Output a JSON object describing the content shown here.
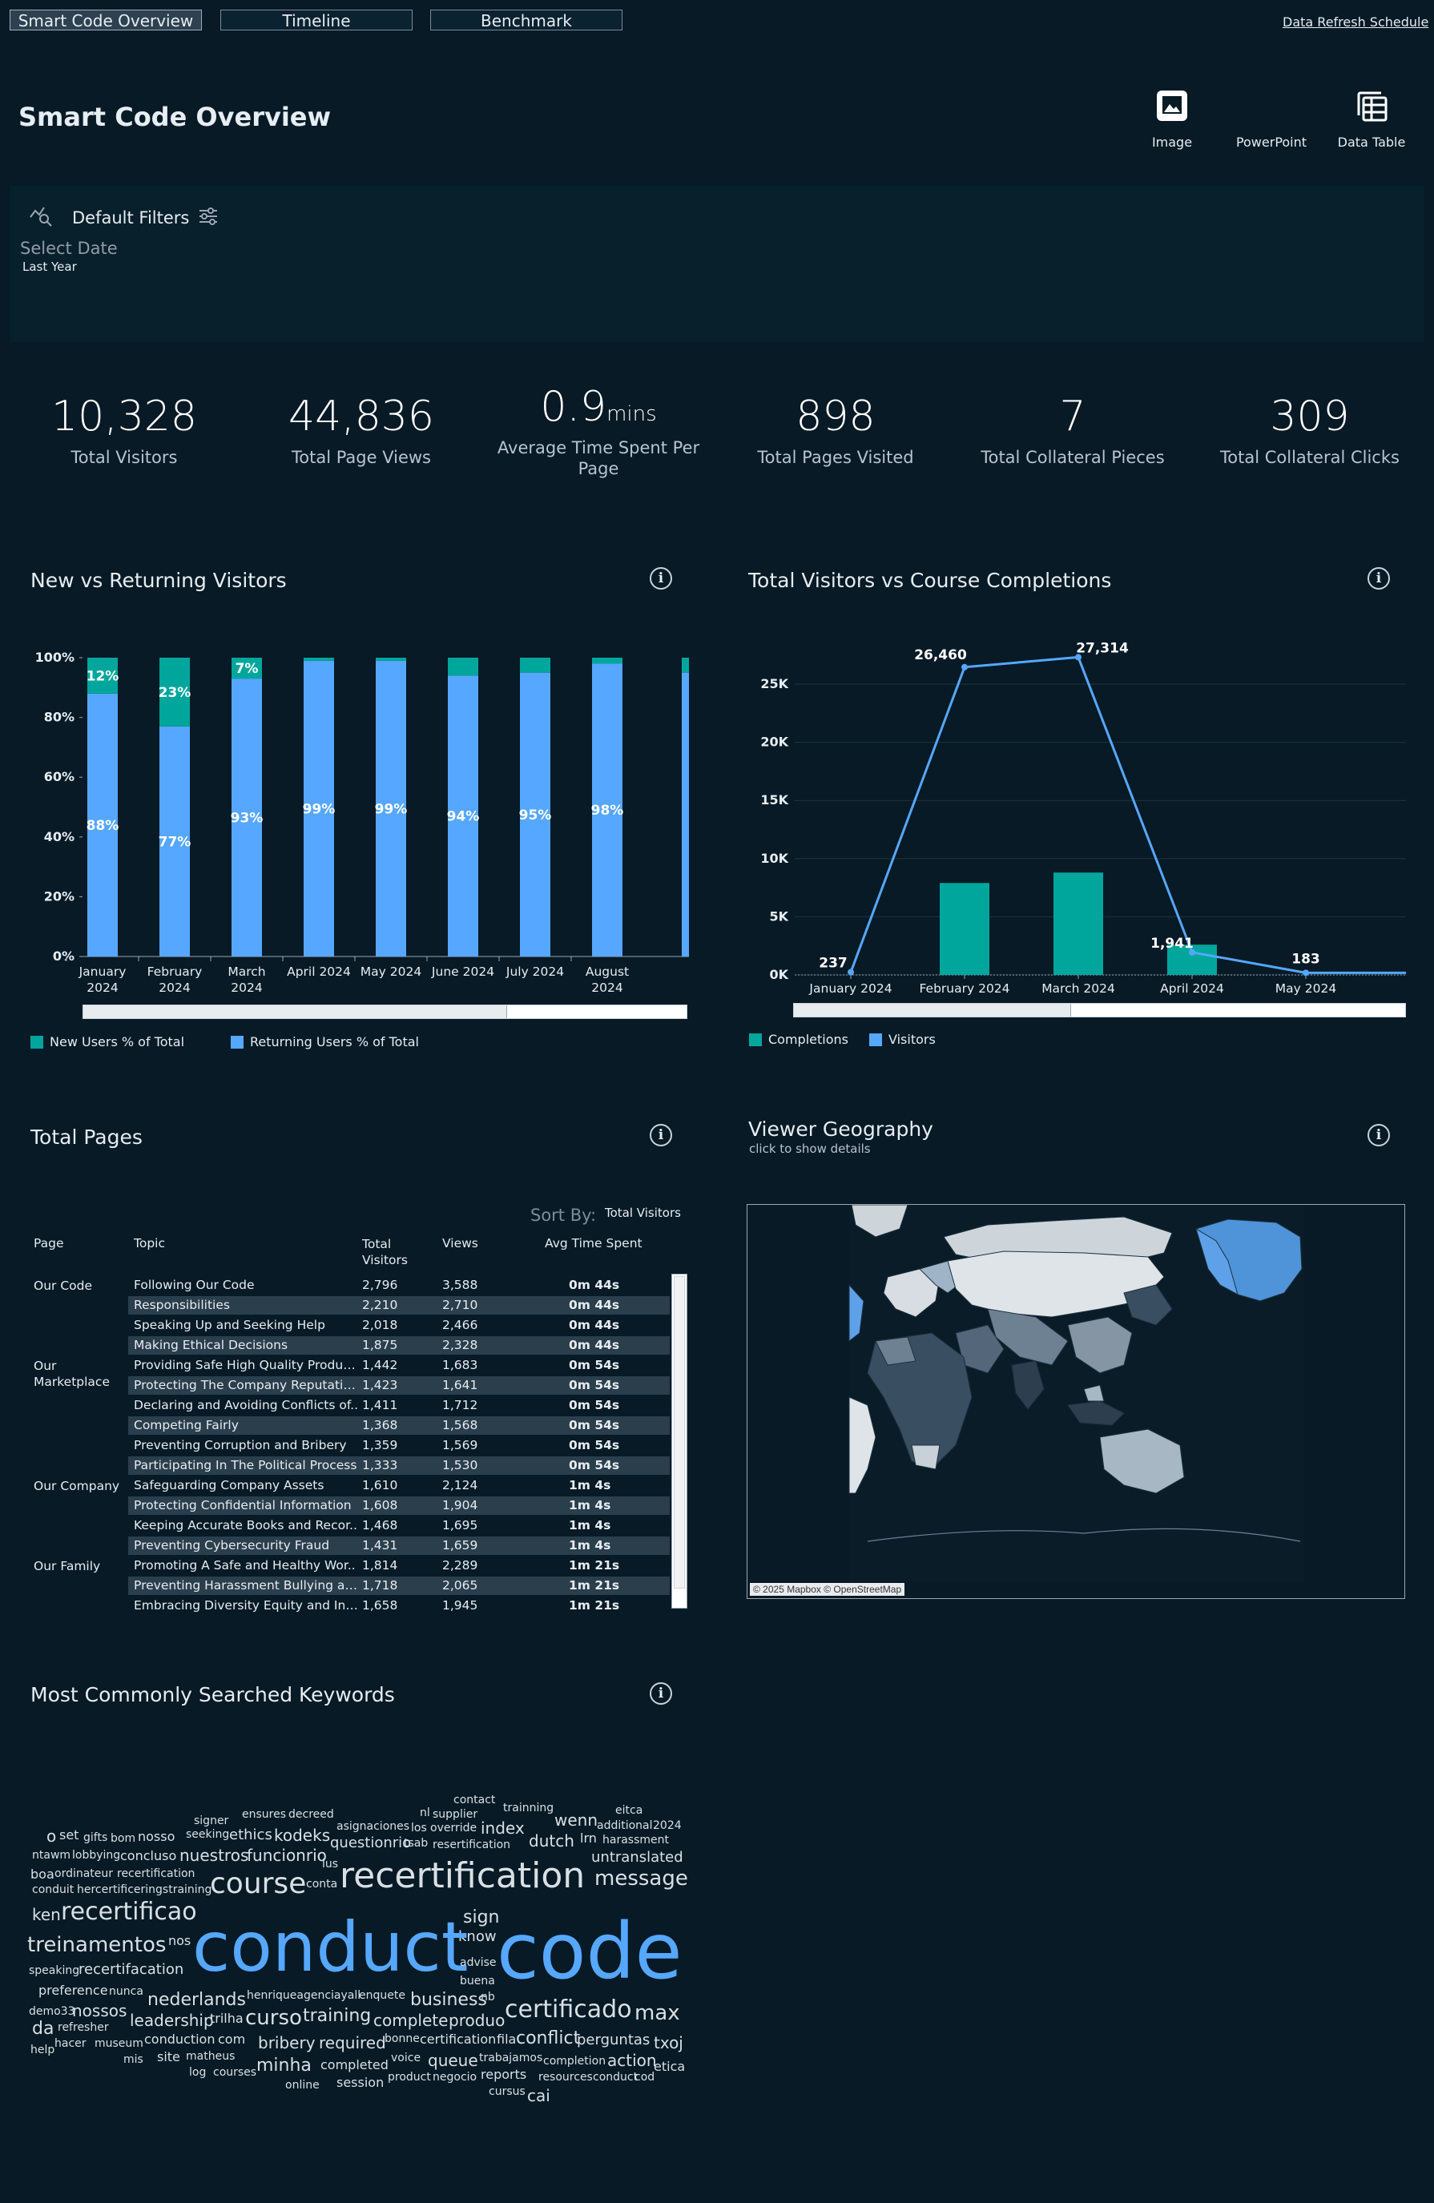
{
  "tabs": [
    "Smart Code Overview",
    "Timeline",
    "Benchmark"
  ],
  "refresh_link": "Data Refresh Schedule",
  "page_title": "Smart Code Overview",
  "tools": [
    "Image",
    "PowerPoint",
    "Data Table"
  ],
  "filters": {
    "label": "Default Filters",
    "select_date": "Select Date",
    "date_value": "Last Year"
  },
  "kpis": [
    {
      "value": "10,328",
      "label": "Total Visitors"
    },
    {
      "value": "44,836",
      "label": "Total Page Views"
    },
    {
      "value": "0.9",
      "unit": "mins",
      "label": "Average Time Spent Per Page"
    },
    {
      "value": "898",
      "label": "Total Pages Visited"
    },
    {
      "value": "7",
      "label": "Total Collateral Pieces"
    },
    {
      "value": "309",
      "label": "Total Collateral Clicks"
    }
  ],
  "cards": {
    "new_vs_returning": "New vs Returning Visitors",
    "visitors_vs_completions": "Total Visitors vs Course Completions",
    "total_pages": "Total Pages",
    "viewer_geography": "Viewer Geography",
    "geo_subtitle": "click to show details",
    "keywords": "Most Commonly Searched Keywords",
    "map_attribution": "© 2025 Mapbox © OpenStreetMap"
  },
  "chart_data": [
    {
      "type": "bar",
      "stacked": true,
      "categories": [
        "January 2024",
        "February 2024",
        "March 2024",
        "April 2024",
        "May 2024",
        "June 2024",
        "July 2024",
        "August 2024"
      ],
      "series": [
        {
          "name": "New Users % of Total",
          "values": [
            12,
            23,
            7,
            1,
            1,
            6,
            5,
            2
          ],
          "labels": [
            "12%",
            "23%",
            "7%",
            "",
            "",
            "",
            "",
            ""
          ]
        },
        {
          "name": "Returning Users % of Total",
          "values": [
            88,
            77,
            93,
            99,
            99,
            94,
            95,
            98
          ],
          "labels": [
            "88%",
            "77%",
            "93%",
            "99%",
            "99%",
            "94%",
            "95%",
            "98%"
          ]
        }
      ],
      "y_ticks": [
        "0%",
        "20%",
        "40%",
        "60%",
        "80%",
        "100%"
      ],
      "ylim": [
        0,
        100
      ],
      "colors": {
        "new": "#00a69c",
        "returning": "#56a7ff"
      },
      "legend_position": "bottom-left"
    },
    {
      "type": "bar+line",
      "categories": [
        "January 2024",
        "February 2024",
        "March 2024",
        "April 2024",
        "May 2024"
      ],
      "series": [
        {
          "name": "Completions",
          "type": "bar",
          "values": [
            0,
            7900,
            8800,
            2600,
            0
          ]
        },
        {
          "name": "Visitors",
          "type": "line",
          "values": [
            237,
            26460,
            27314,
            1941,
            183
          ],
          "labels": [
            "237",
            "26,460",
            "27,314",
            "1,941",
            "183"
          ]
        }
      ],
      "y_ticks": [
        "0K",
        "5K",
        "10K",
        "15K",
        "20K",
        "25K"
      ],
      "ylim": [
        0,
        30000
      ],
      "colors": {
        "completions": "#00a69c",
        "visitors": "#56a7ff"
      },
      "legend_position": "bottom-left"
    }
  ],
  "table": {
    "sort_by_label": "Sort By:",
    "sort_by_value": "Total Visitors",
    "headers": [
      "Page",
      "Topic",
      "Total Visitors",
      "Views",
      "Avg Time Spent"
    ],
    "groups": [
      {
        "name": "Our Code",
        "start": 0
      },
      {
        "name": "Our Marketplace",
        "start": 4
      },
      {
        "name": "Our Company",
        "start": 10
      },
      {
        "name": "Our Family",
        "start": 14
      }
    ],
    "rows": [
      [
        "Following Our Code",
        "2,796",
        "3,588",
        "0m 44s"
      ],
      [
        "Responsibilities",
        "2,210",
        "2,710",
        "0m 44s"
      ],
      [
        "Speaking Up and Seeking Help",
        "2,018",
        "2,466",
        "0m 44s"
      ],
      [
        "Making Ethical Decisions",
        "1,875",
        "2,328",
        "0m 44s"
      ],
      [
        "Providing Safe High Quality Products",
        "1,442",
        "1,683",
        "0m 54s"
      ],
      [
        "Protecting The Company Reputation",
        "1,423",
        "1,641",
        "0m 54s"
      ],
      [
        "Declaring and Avoiding Conflicts of..",
        "1,411",
        "1,712",
        "0m 54s"
      ],
      [
        "Competing Fairly",
        "1,368",
        "1,568",
        "0m 54s"
      ],
      [
        "Preventing Corruption and Bribery",
        "1,359",
        "1,569",
        "0m 54s"
      ],
      [
        "Participating In The Political Process",
        "1,333",
        "1,530",
        "0m 54s"
      ],
      [
        "Safeguarding Company Assets",
        "1,610",
        "2,124",
        "1m 4s"
      ],
      [
        "Protecting Confidential Information",
        "1,608",
        "1,904",
        "1m 4s"
      ],
      [
        "Keeping Accurate Books and Recor..",
        "1,468",
        "1,695",
        "1m 4s"
      ],
      [
        "Preventing Cybersecurity Fraud",
        "1,431",
        "1,659",
        "1m 4s"
      ],
      [
        "Promoting A Safe and Healthy Wor..",
        "1,814",
        "2,289",
        "1m 21s"
      ],
      [
        "Preventing Harassment Bullying an..",
        "1,718",
        "2,065",
        "1m 21s"
      ],
      [
        "Embracing Diversity Equity and Inc..",
        "1,658",
        "1,945",
        "1m 21s"
      ]
    ]
  },
  "keywords": [
    [
      "contact",
      566,
      2240,
      14,
      "#d8e0e6"
    ],
    [
      "trainning",
      628,
      2250,
      14,
      "#d8e0e6"
    ],
    [
      "eitca",
      768,
      2253,
      14,
      "#d8e0e6"
    ],
    [
      "signer",
      242,
      2266,
      14,
      "#d8e0e6"
    ],
    [
      "ensures",
      302,
      2258,
      14,
      "#d8e0e6"
    ],
    [
      "decreed",
      360,
      2258,
      14,
      "#d8e0e6"
    ],
    [
      "nl",
      524,
      2256,
      14,
      "#d8e0e6"
    ],
    [
      "supplier",
      540,
      2258,
      14,
      "#d8e0e6"
    ],
    [
      "wenn",
      692,
      2262,
      20,
      "#d8e0e6"
    ],
    [
      "additional",
      745,
      2272,
      14,
      "#d8e0e6"
    ],
    [
      "2024",
      815,
      2272,
      14,
      "#d8e0e6"
    ],
    [
      "o",
      58,
      2282,
      20,
      "#d8e0e6"
    ],
    [
      "set",
      74,
      2283,
      16,
      "#d8e0e6"
    ],
    [
      "gifts",
      104,
      2287,
      14,
      "#d8e0e6"
    ],
    [
      "bom",
      138,
      2288,
      14,
      "#d8e0e6"
    ],
    [
      "nosso",
      172,
      2285,
      16,
      "#d8e0e6"
    ],
    [
      "seeking",
      232,
      2283,
      14,
      "#d8e0e6"
    ],
    [
      "ethics",
      286,
      2282,
      18,
      "#d8e0e6"
    ],
    [
      "kodeks",
      342,
      2281,
      20,
      "#d8e0e6"
    ],
    [
      "asignaciones",
      420,
      2273,
      14,
      "#d8e0e6"
    ],
    [
      "los",
      513,
      2275,
      14,
      "#d8e0e6"
    ],
    [
      "override",
      537,
      2275,
      14,
      "#d8e0e6"
    ],
    [
      "index",
      600,
      2272,
      20,
      "#d8e0e6"
    ],
    [
      "lrn",
      724,
      2287,
      16,
      "#d8e0e6"
    ],
    [
      "harassment",
      752,
      2290,
      14,
      "#d8e0e6"
    ],
    [
      "questionrio",
      412,
      2292,
      18,
      "#d8e0e6"
    ],
    [
      "tsab",
      504,
      2294,
      14,
      "#d8e0e6"
    ],
    [
      "resertification",
      540,
      2296,
      14,
      "#d8e0e6"
    ],
    [
      "dutch",
      660,
      2288,
      20,
      "#d8e0e6"
    ],
    [
      "ntawm",
      40,
      2309,
      14,
      "#d8e0e6"
    ],
    [
      "lobbying",
      90,
      2309,
      14,
      "#d8e0e6"
    ],
    [
      "concluso",
      150,
      2309,
      16,
      "#d8e0e6"
    ],
    [
      "nuestros",
      224,
      2306,
      20,
      "#d8e0e6"
    ],
    [
      "funcionrio",
      308,
      2306,
      20,
      "#d8e0e6"
    ],
    [
      "untranslated",
      738,
      2310,
      18,
      "#d8e0e6"
    ],
    [
      "lus",
      402,
      2320,
      14,
      "#d8e0e6"
    ],
    [
      "boa",
      38,
      2332,
      16,
      "#d8e0e6"
    ],
    [
      "ordinateur",
      68,
      2332,
      14,
      "#d8e0e6"
    ],
    [
      "recertification",
      146,
      2332,
      14,
      "#d8e0e6"
    ],
    [
      "course",
      262,
      2334,
      36,
      "#d8e0e6"
    ],
    [
      "conta",
      382,
      2345,
      14,
      "#d8e0e6"
    ],
    [
      "recertification",
      424,
      2320,
      44,
      "#d8e0e6"
    ],
    [
      "message",
      742,
      2332,
      26,
      "#d8e0e6"
    ],
    [
      "conduit",
      40,
      2352,
      14,
      "#d8e0e6"
    ],
    [
      "hercertificeringstraining",
      96,
      2352,
      14,
      "#d8e0e6"
    ],
    [
      "ken",
      40,
      2380,
      20,
      "#d8e0e6"
    ],
    [
      "recertificao",
      76,
      2372,
      30,
      "#d8e0e6"
    ],
    [
      "sign",
      578,
      2383,
      22,
      "#d8e0e6"
    ],
    [
      "know",
      572,
      2409,
      18,
      "#d8e0e6"
    ],
    [
      "nos",
      210,
      2415,
      16,
      "#d8e0e6"
    ],
    [
      "treinamentos",
      34,
      2415,
      26,
      "#d8e0e6"
    ],
    [
      "conduct",
      240,
      2388,
      86,
      "#56a7ff"
    ],
    [
      "code",
      620,
      2388,
      96,
      "#56a7ff"
    ],
    [
      "speaking",
      36,
      2453,
      14,
      "#d8e0e6"
    ],
    [
      "recertifacation",
      98,
      2450,
      18,
      "#d8e0e6"
    ],
    [
      "advise",
      574,
      2443,
      14,
      "#d8e0e6"
    ],
    [
      "preference",
      48,
      2477,
      16,
      "#d8e0e6"
    ],
    [
      "nunca",
      136,
      2479,
      14,
      "#d8e0e6"
    ],
    [
      "buena",
      574,
      2466,
      14,
      "#d8e0e6"
    ],
    [
      "nederlands",
      184,
      2486,
      22,
      "#d8e0e6"
    ],
    [
      "henriqueagenciayall",
      308,
      2484,
      14,
      "#d8e0e6"
    ],
    [
      "enquete",
      448,
      2484,
      14,
      "#d8e0e6"
    ],
    [
      "business",
      512,
      2486,
      22,
      "#d8e0e6"
    ],
    [
      "nb",
      600,
      2486,
      14,
      "#d8e0e6"
    ],
    [
      "certificado",
      630,
      2494,
      30,
      "#d8e0e6"
    ],
    [
      "max",
      792,
      2500,
      26,
      "#d8e0e6"
    ],
    [
      "demo33",
      36,
      2504,
      14,
      "#d8e0e6"
    ],
    [
      "nossos",
      90,
      2500,
      20,
      "#d8e0e6"
    ],
    [
      "leadership",
      162,
      2512,
      20,
      "#d8e0e6"
    ],
    [
      "trilha",
      262,
      2512,
      16,
      "#d8e0e6"
    ],
    [
      "curso",
      306,
      2506,
      26,
      "#d8e0e6"
    ],
    [
      "training",
      378,
      2506,
      22,
      "#d8e0e6"
    ],
    [
      "complete",
      466,
      2512,
      20,
      "#d8e0e6"
    ],
    [
      "produo",
      560,
      2512,
      20,
      "#d8e0e6"
    ],
    [
      "da",
      40,
      2522,
      22,
      "#d8e0e6"
    ],
    [
      "refresher",
      72,
      2524,
      14,
      "#d8e0e6"
    ],
    [
      "conduction",
      180,
      2538,
      16,
      "#d8e0e6"
    ],
    [
      "com",
      272,
      2538,
      16,
      "#d8e0e6"
    ],
    [
      "bribery",
      322,
      2540,
      20,
      "#d8e0e6"
    ],
    [
      "required",
      398,
      2540,
      20,
      "#d8e0e6"
    ],
    [
      "bonne",
      480,
      2538,
      14,
      "#d8e0e6"
    ],
    [
      "certification",
      524,
      2538,
      16,
      "#d8e0e6"
    ],
    [
      "fila",
      620,
      2538,
      16,
      "#d8e0e6"
    ],
    [
      "conflict",
      644,
      2534,
      22,
      "#d8e0e6"
    ],
    [
      "perguntas",
      720,
      2538,
      18,
      "#d8e0e6"
    ],
    [
      "txoj",
      816,
      2540,
      20,
      "#d8e0e6"
    ],
    [
      "hacer",
      68,
      2544,
      14,
      "#d8e0e6"
    ],
    [
      "museum",
      118,
      2544,
      14,
      "#d8e0e6"
    ],
    [
      "help",
      38,
      2552,
      14,
      "#d8e0e6"
    ],
    [
      "mis",
      154,
      2564,
      14,
      "#d8e0e6"
    ],
    [
      "site",
      196,
      2560,
      16,
      "#d8e0e6"
    ],
    [
      "matheus",
      232,
      2560,
      14,
      "#d8e0e6"
    ],
    [
      "minha",
      320,
      2568,
      22,
      "#d8e0e6"
    ],
    [
      "completed",
      400,
      2570,
      16,
      "#d8e0e6"
    ],
    [
      "voice",
      488,
      2562,
      14,
      "#d8e0e6"
    ],
    [
      "queue",
      534,
      2562,
      20,
      "#d8e0e6"
    ],
    [
      "trabajamos",
      598,
      2562,
      14,
      "#d8e0e6"
    ],
    [
      "completion",
      678,
      2566,
      14,
      "#d8e0e6"
    ],
    [
      "action",
      758,
      2562,
      20,
      "#d8e0e6"
    ],
    [
      "etica",
      816,
      2572,
      16,
      "#d8e0e6"
    ],
    [
      "log",
      236,
      2580,
      14,
      "#d8e0e6"
    ],
    [
      "courses",
      266,
      2580,
      14,
      "#d8e0e6"
    ],
    [
      "product",
      484,
      2586,
      14,
      "#d8e0e6"
    ],
    [
      "negocio",
      540,
      2586,
      14,
      "#d8e0e6"
    ],
    [
      "reports",
      600,
      2582,
      16,
      "#d8e0e6"
    ],
    [
      "resources",
      672,
      2586,
      14,
      "#d8e0e6"
    ],
    [
      "conduct",
      740,
      2586,
      14,
      "#d8e0e6"
    ],
    [
      "cod",
      792,
      2586,
      14,
      "#d8e0e6"
    ],
    [
      "online",
      356,
      2596,
      14,
      "#d8e0e6"
    ],
    [
      "session",
      420,
      2592,
      16,
      "#d8e0e6"
    ],
    [
      "cursus",
      610,
      2604,
      14,
      "#d8e0e6"
    ],
    [
      "cai",
      658,
      2606,
      20,
      "#d8e0e6"
    ]
  ]
}
